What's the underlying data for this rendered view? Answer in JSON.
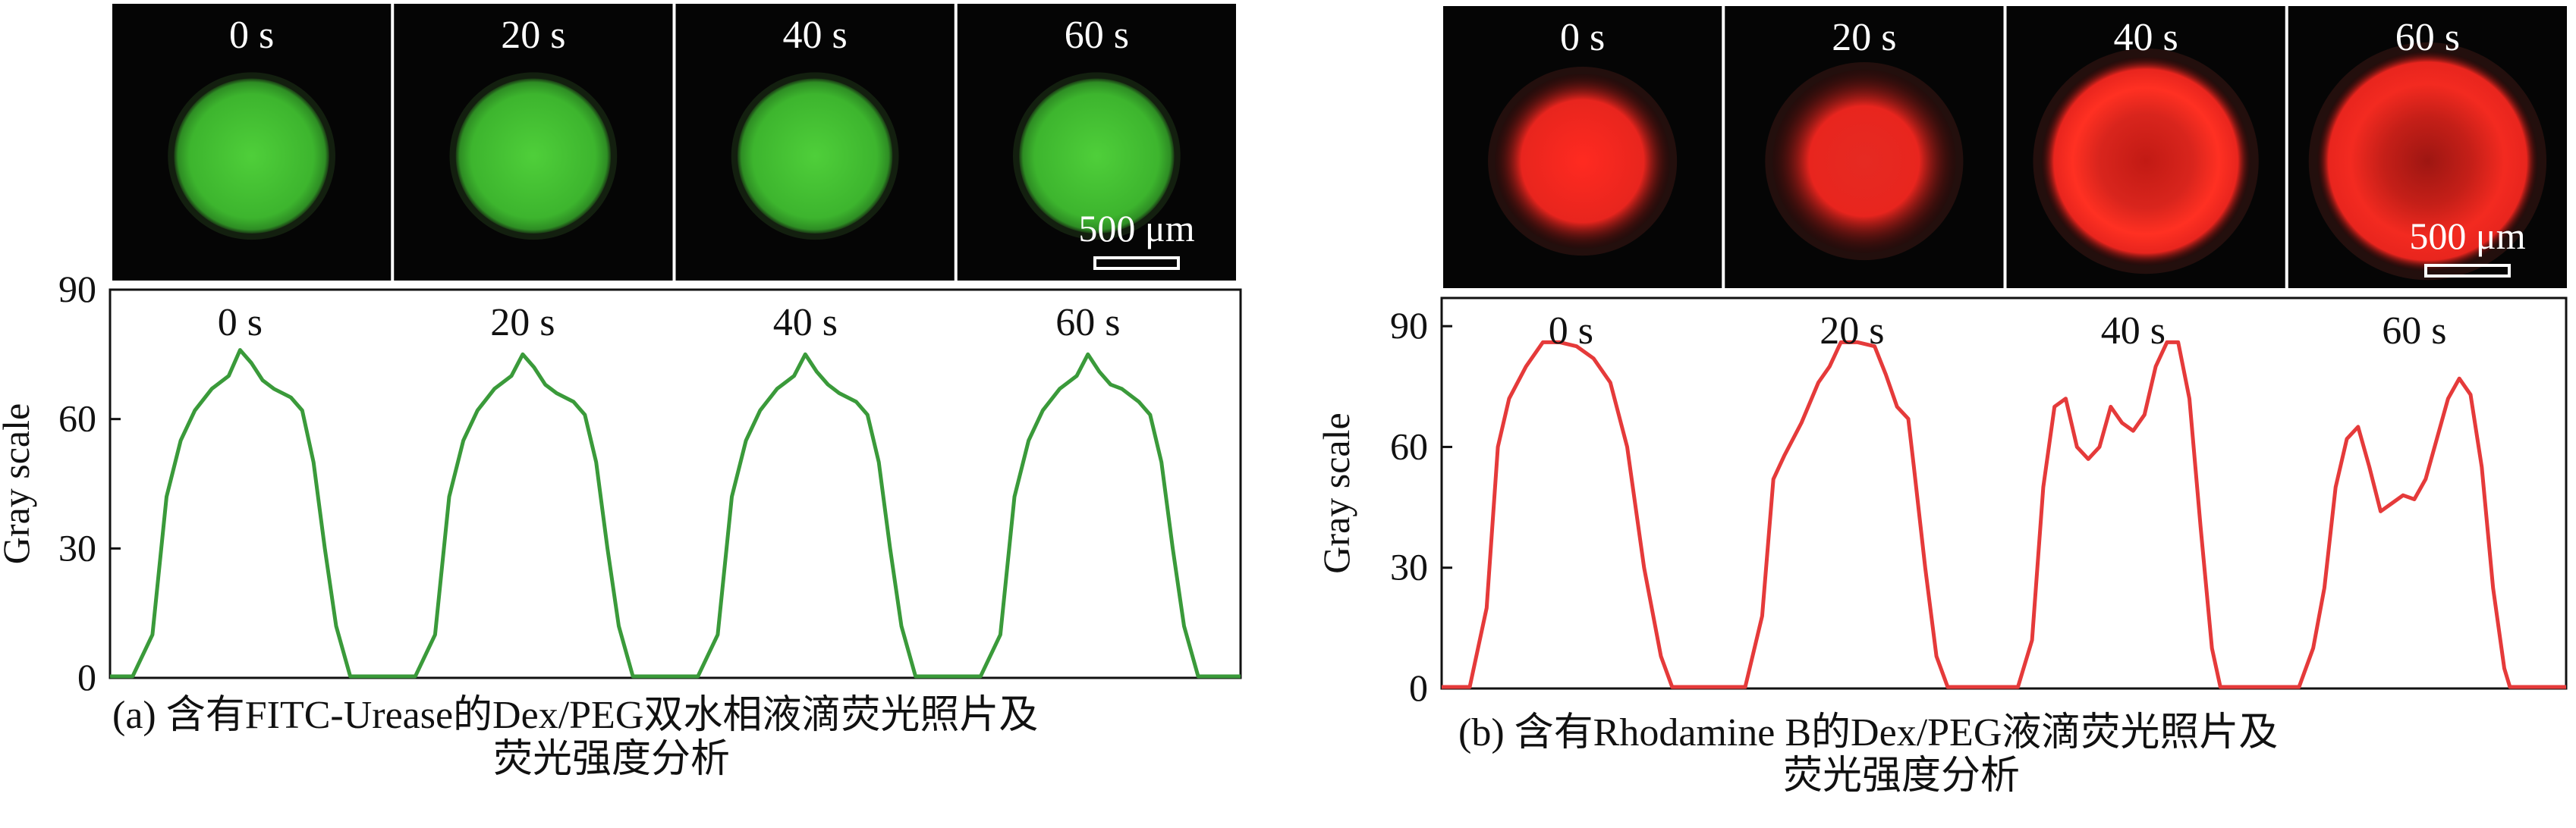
{
  "scale_bar_label": "500 μm",
  "panels": [
    {
      "id": "a",
      "caption_line1": "(a) 含有FITC-Urease的Dex/PEG双水相液滴荧光照片及",
      "caption_line2": "荧光强度分析",
      "frame_times": [
        "0 s",
        "20 s",
        "40 s",
        "60 s"
      ],
      "droplet_color": "#3fbf30",
      "droplet_glow": "#7be05a"
    },
    {
      "id": "b",
      "caption_line1": "(b) 含有Rhodamine B的Dex/PEG液滴荧光照片及",
      "caption_line2": "荧光强度分析",
      "frame_times": [
        "0 s",
        "20 s",
        "40 s",
        "60 s"
      ],
      "droplet_color": "#e8251e",
      "droplet_glow": "#ff5a4a"
    }
  ],
  "chart_data": [
    {
      "type": "line",
      "ylabel": "Gray scale",
      "xlabel": "",
      "ylim": [
        0,
        90
      ],
      "yticks": [
        0,
        30,
        60,
        90
      ],
      "line_color": "#3a9a3a",
      "segment_labels": [
        "0 s",
        "20 s",
        "40 s",
        "60 s"
      ],
      "series": [
        {
          "label": "0 s",
          "profile": [
            [
              0,
              0
            ],
            [
              0.08,
              0
            ],
            [
              0.15,
              10
            ],
            [
              0.2,
              42
            ],
            [
              0.25,
              55
            ],
            [
              0.3,
              62
            ],
            [
              0.36,
              67
            ],
            [
              0.42,
              70
            ],
            [
              0.46,
              76
            ],
            [
              0.5,
              73
            ],
            [
              0.54,
              69
            ],
            [
              0.58,
              67
            ],
            [
              0.64,
              65
            ],
            [
              0.68,
              62
            ],
            [
              0.72,
              50
            ],
            [
              0.76,
              30
            ],
            [
              0.8,
              12
            ],
            [
              0.85,
              0
            ],
            [
              1,
              0
            ]
          ]
        },
        {
          "label": "20 s",
          "profile": [
            [
              0,
              0
            ],
            [
              0.08,
              0
            ],
            [
              0.15,
              10
            ],
            [
              0.2,
              42
            ],
            [
              0.25,
              55
            ],
            [
              0.3,
              62
            ],
            [
              0.36,
              67
            ],
            [
              0.42,
              70
            ],
            [
              0.46,
              75
            ],
            [
              0.5,
              72
            ],
            [
              0.54,
              68
            ],
            [
              0.58,
              66
            ],
            [
              0.64,
              64
            ],
            [
              0.68,
              61
            ],
            [
              0.72,
              50
            ],
            [
              0.76,
              30
            ],
            [
              0.8,
              12
            ],
            [
              0.85,
              0
            ],
            [
              1,
              0
            ]
          ]
        },
        {
          "label": "40 s",
          "profile": [
            [
              0,
              0
            ],
            [
              0.08,
              0
            ],
            [
              0.15,
              10
            ],
            [
              0.2,
              42
            ],
            [
              0.25,
              55
            ],
            [
              0.3,
              62
            ],
            [
              0.36,
              67
            ],
            [
              0.42,
              70
            ],
            [
              0.46,
              75
            ],
            [
              0.5,
              71
            ],
            [
              0.54,
              68
            ],
            [
              0.58,
              66
            ],
            [
              0.64,
              64
            ],
            [
              0.68,
              61
            ],
            [
              0.72,
              50
            ],
            [
              0.76,
              30
            ],
            [
              0.8,
              12
            ],
            [
              0.85,
              0
            ],
            [
              1,
              0
            ]
          ]
        },
        {
          "label": "60 s",
          "profile": [
            [
              0,
              0
            ],
            [
              0.08,
              0
            ],
            [
              0.15,
              10
            ],
            [
              0.2,
              42
            ],
            [
              0.25,
              55
            ],
            [
              0.3,
              62
            ],
            [
              0.36,
              67
            ],
            [
              0.42,
              70
            ],
            [
              0.46,
              75
            ],
            [
              0.5,
              71
            ],
            [
              0.54,
              68
            ],
            [
              0.58,
              67
            ],
            [
              0.64,
              64
            ],
            [
              0.68,
              61
            ],
            [
              0.72,
              50
            ],
            [
              0.76,
              30
            ],
            [
              0.8,
              12
            ],
            [
              0.85,
              0
            ],
            [
              1,
              0
            ]
          ]
        }
      ]
    },
    {
      "type": "line",
      "ylabel": "Gray scale",
      "xlabel": "",
      "ylim": [
        0,
        97
      ],
      "yticks": [
        0,
        30,
        60,
        90
      ],
      "line_color": "#e53a3a",
      "segment_labels": [
        "0 s",
        "20 s",
        "40 s",
        "60 s"
      ],
      "series": [
        {
          "label": "0 s",
          "profile": [
            [
              0,
              0
            ],
            [
              0.1,
              0
            ],
            [
              0.16,
              20
            ],
            [
              0.2,
              60
            ],
            [
              0.24,
              72
            ],
            [
              0.3,
              80
            ],
            [
              0.36,
              86
            ],
            [
              0.42,
              86
            ],
            [
              0.48,
              85
            ],
            [
              0.54,
              82
            ],
            [
              0.6,
              76
            ],
            [
              0.66,
              60
            ],
            [
              0.72,
              30
            ],
            [
              0.78,
              8
            ],
            [
              0.82,
              0
            ],
            [
              1,
              0
            ]
          ]
        },
        {
          "label": "20 s",
          "profile": [
            [
              0,
              0
            ],
            [
              0.08,
              0
            ],
            [
              0.14,
              18
            ],
            [
              0.18,
              52
            ],
            [
              0.22,
              58
            ],
            [
              0.28,
              66
            ],
            [
              0.34,
              76
            ],
            [
              0.38,
              80
            ],
            [
              0.42,
              86
            ],
            [
              0.48,
              86
            ],
            [
              0.54,
              85
            ],
            [
              0.58,
              78
            ],
            [
              0.62,
              70
            ],
            [
              0.66,
              67
            ],
            [
              0.68,
              55
            ],
            [
              0.72,
              30
            ],
            [
              0.76,
              8
            ],
            [
              0.8,
              0
            ],
            [
              1,
              0
            ]
          ]
        },
        {
          "label": "40 s",
          "profile": [
            [
              0,
              0
            ],
            [
              0.05,
              0
            ],
            [
              0.1,
              12
            ],
            [
              0.14,
              50
            ],
            [
              0.18,
              70
            ],
            [
              0.22,
              72
            ],
            [
              0.26,
              60
            ],
            [
              0.3,
              57
            ],
            [
              0.34,
              60
            ],
            [
              0.38,
              70
            ],
            [
              0.42,
              66
            ],
            [
              0.46,
              64
            ],
            [
              0.5,
              68
            ],
            [
              0.54,
              80
            ],
            [
              0.58,
              86
            ],
            [
              0.62,
              86
            ],
            [
              0.66,
              72
            ],
            [
              0.7,
              40
            ],
            [
              0.74,
              10
            ],
            [
              0.77,
              0
            ],
            [
              1,
              0
            ]
          ]
        },
        {
          "label": "60 s",
          "profile": [
            [
              0,
              0
            ],
            [
              0.05,
              0
            ],
            [
              0.1,
              10
            ],
            [
              0.14,
              25
            ],
            [
              0.18,
              50
            ],
            [
              0.22,
              62
            ],
            [
              0.26,
              65
            ],
            [
              0.3,
              55
            ],
            [
              0.34,
              44
            ],
            [
              0.38,
              46
            ],
            [
              0.42,
              48
            ],
            [
              0.46,
              47
            ],
            [
              0.5,
              52
            ],
            [
              0.54,
              62
            ],
            [
              0.58,
              72
            ],
            [
              0.62,
              77
            ],
            [
              0.66,
              73
            ],
            [
              0.7,
              55
            ],
            [
              0.74,
              25
            ],
            [
              0.78,
              5
            ],
            [
              0.8,
              0
            ],
            [
              1,
              0
            ]
          ]
        }
      ]
    }
  ]
}
